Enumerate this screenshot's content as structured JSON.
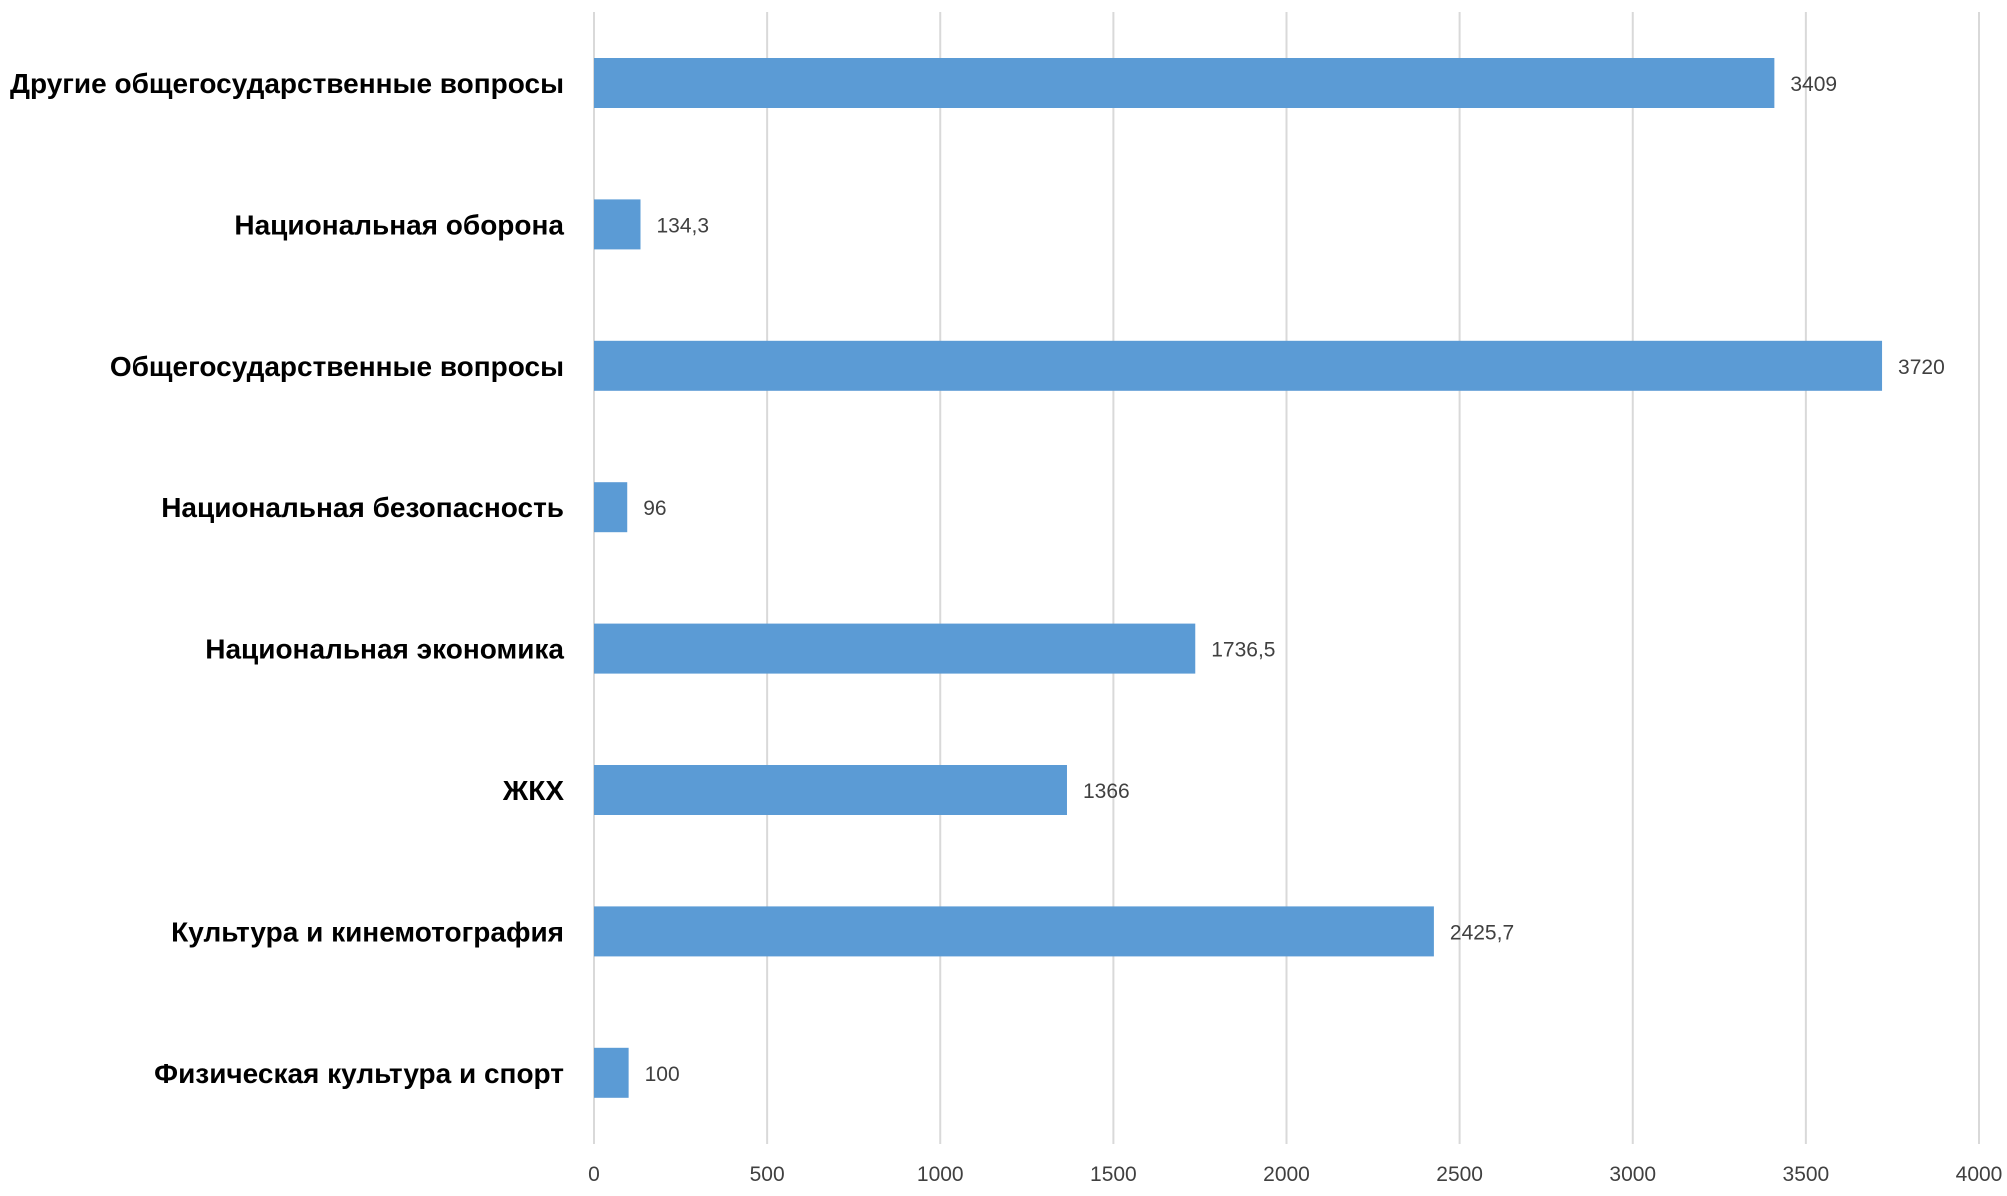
{
  "chart_data": {
    "type": "bar",
    "orientation": "horizontal",
    "title": "",
    "xlabel": "",
    "ylabel": "",
    "categories": [
      "Другие общегосударственные вопросы",
      "Национальная оборона",
      "Общегосударственные вопросы",
      "Национальная безопасность",
      "Национальная экономика",
      "ЖКХ",
      "Культура и кинемотография",
      "Физическая культура и спорт"
    ],
    "values": [
      3409,
      134.3,
      3720,
      96,
      1736.5,
      1366,
      2425.7,
      100
    ],
    "data_labels": [
      "3409",
      "134,3",
      "3720",
      "96",
      "1736,5",
      "1366",
      "2425,7",
      "100"
    ],
    "xlim": [
      0,
      4000
    ],
    "xticks": [
      0,
      500,
      1000,
      1500,
      2000,
      2500,
      3000,
      3500,
      4000
    ],
    "xtick_labels": [
      "0",
      "500",
      "1000",
      "1500",
      "2000",
      "2500",
      "3000",
      "3500",
      "4000"
    ],
    "grid": "vertical",
    "legend": "none",
    "bar_color": "#5b9bd5"
  }
}
